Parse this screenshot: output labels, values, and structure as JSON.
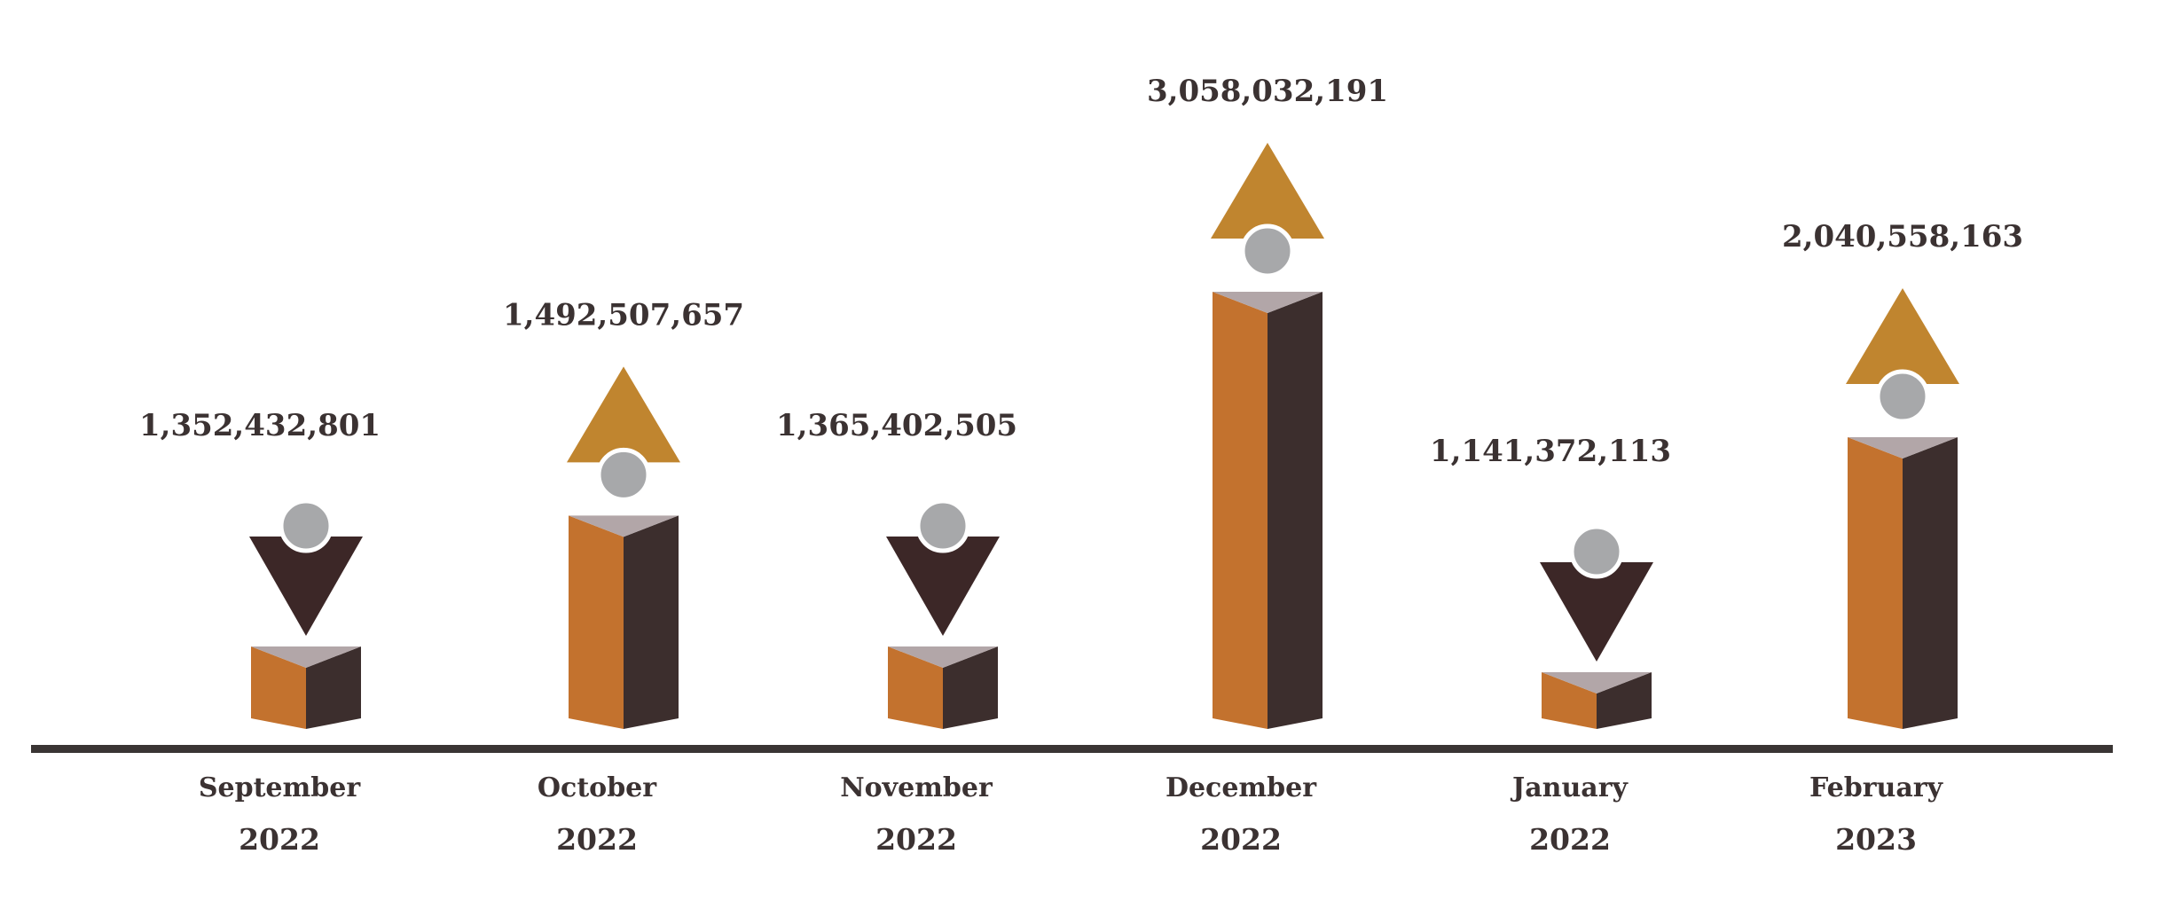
{
  "chart_data": {
    "type": "bar",
    "title": "",
    "xlabel": "",
    "ylabel": "",
    "grid": false,
    "categories": [
      {
        "month": "September",
        "year": "2022",
        "value": 1352432801,
        "label": "1,352,432,801",
        "trend": "down"
      },
      {
        "month": "October",
        "year": "2022",
        "value": 1492507657,
        "label": "1,492,507,657",
        "trend": "up"
      },
      {
        "month": "November",
        "year": "2022",
        "value": 1365402505,
        "label": "1,365,402,505",
        "trend": "down"
      },
      {
        "month": "December",
        "year": "2022",
        "value": 3058032191,
        "label": "3,058,032,191",
        "trend": "up"
      },
      {
        "month": "January",
        "year": "2022",
        "value": 1141372113,
        "label": "1,141,372,113",
        "trend": "down"
      },
      {
        "month": "February",
        "year": "2023",
        "value": 2040558163,
        "label": "2,040,558,163",
        "trend": "up"
      }
    ]
  },
  "colors": {
    "front_face": "#c3722e",
    "side_face": "#3c2e2d",
    "top_face": "#b2a6a8",
    "up_arrow": "#c0852f",
    "down_arrow": "#3c2727",
    "circle": "#a7a8aa",
    "baseline": "#3a3534",
    "text": "#3b3232"
  }
}
